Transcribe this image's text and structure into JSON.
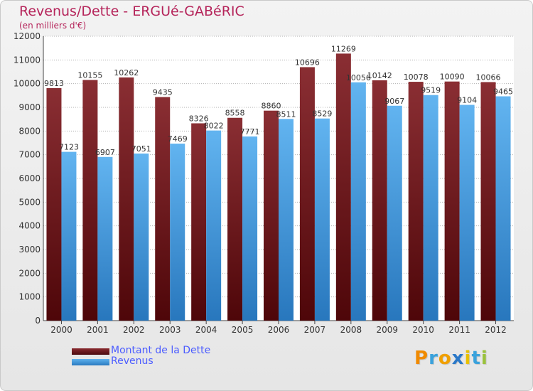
{
  "header": {
    "title": "Revenus/Dette - ERGUé-GABéRIC",
    "subtitle": "(en milliers d'€)"
  },
  "legend": {
    "items": [
      {
        "label": "Montant de la Dette",
        "color": "#7a1f24"
      },
      {
        "label": "Revenus",
        "color": "#3d97de"
      }
    ]
  },
  "logo": {
    "letters": [
      "P",
      "r",
      "o",
      "x",
      "i",
      "t",
      "i"
    ],
    "colors": [
      "#f08a00",
      "#3aa2dc",
      "#f0a000",
      "#2a78c8",
      "#e8c000",
      "#3aa2dc",
      "#9ac23c"
    ]
  },
  "chart_data": {
    "type": "bar",
    "title": "Revenus/Dette - ERGUé-GABéRIC",
    "ylabel": "(en milliers d'€)",
    "xlabel": "",
    "categories": [
      "2000",
      "2001",
      "2002",
      "2003",
      "2004",
      "2005",
      "2006",
      "2007",
      "2008",
      "2009",
      "2010",
      "2011",
      "2012"
    ],
    "series": [
      {
        "name": "Montant de la Dette",
        "color": "#7a1f24",
        "values": [
          9813,
          10155,
          10262,
          9435,
          8326,
          8558,
          8860,
          10696,
          11269,
          10142,
          10078,
          10090,
          10066
        ]
      },
      {
        "name": "Revenus",
        "color": "#3d97de",
        "values": [
          7123,
          6907,
          7051,
          7469,
          8022,
          7771,
          8511,
          8529,
          10056,
          9067,
          9519,
          9104,
          9465
        ]
      }
    ],
    "ylim": [
      0,
      12000
    ],
    "yticks": [
      0,
      1000,
      2000,
      3000,
      4000,
      5000,
      6000,
      7000,
      8000,
      9000,
      10000,
      11000,
      12000
    ],
    "grid": true,
    "legend_position": "bottom-left"
  }
}
